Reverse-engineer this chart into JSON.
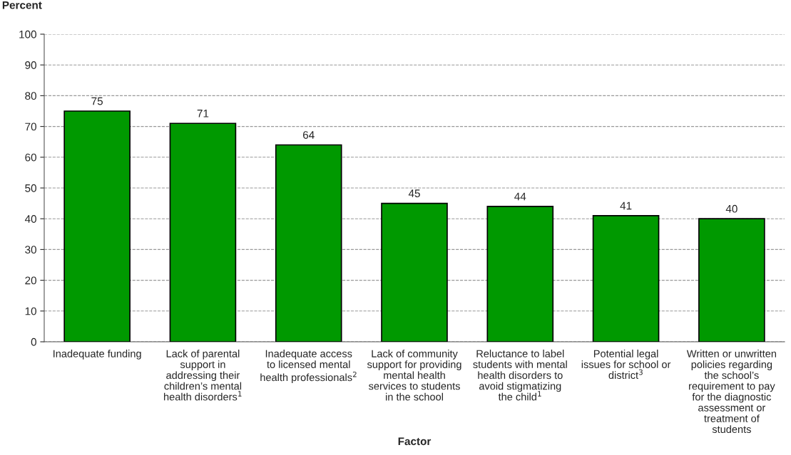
{
  "chart_data": {
    "type": "bar",
    "categories": [
      "Inadequate funding",
      "Lack of parental\nsupport in\naddressing their\nchildren’s mental\nhealth disorders$^{1}$",
      "Inadequate access\nto licensed mental\nhealth professionals$^{2}$",
      "Lack of community\nsupport for providing\nmental health\nservices to students\nin the school",
      "Reluctance to label\nstudents with mental\nhealth disorders to\navoid stigmatizing\nthe child$^{1}$",
      "Potential legal\nissues for school or\ndistrict$^{3}$",
      "Written or unwritten\npolicies regarding\nthe school’s\nrequirement to pay\nfor the diagnostic\nassessment or\ntreatment of\nstudents"
    ],
    "values": [
      75,
      71,
      64,
      45,
      44,
      41,
      40
    ],
    "color": "#009900",
    "data_labels": true,
    "xlabel": "Factor",
    "ylabel": "Percent",
    "ylim": [
      0,
      100
    ],
    "yticks": [
      0,
      10,
      20,
      30,
      40,
      50,
      60,
      70,
      80,
      90,
      100
    ],
    "grid": "y",
    "legend": false
  }
}
